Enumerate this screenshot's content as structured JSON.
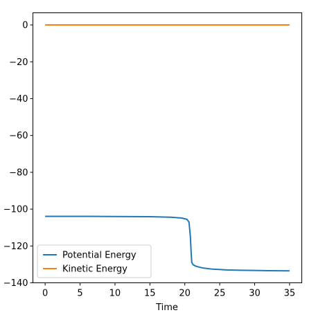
{
  "chart_data": {
    "type": "line",
    "title": "",
    "xlabel": "Time",
    "ylabel": "",
    "xlim": [
      -1.75,
      36.75
    ],
    "ylim": [
      -140,
      6.6
    ],
    "xticks": [
      0,
      5,
      10,
      15,
      20,
      25,
      30,
      35
    ],
    "yticks": [
      0,
      -20,
      -40,
      -60,
      -80,
      -100,
      -120,
      -140
    ],
    "xtick_labels": [
      "0",
      "5",
      "10",
      "15",
      "20",
      "25",
      "30",
      "35"
    ],
    "ytick_labels": [
      "0",
      "−20",
      "−40",
      "−60",
      "−80",
      "−100",
      "−120",
      "−140"
    ],
    "grid": false,
    "legend_position": "lower-left",
    "series": [
      {
        "name": "Potential Energy",
        "color": "#1f77b4",
        "x": [
          0,
          5,
          10,
          15,
          18,
          19.5,
          20.3,
          20.6,
          20.8,
          20.9,
          21.0,
          21.2,
          21.6,
          22.5,
          24,
          26,
          28,
          30,
          32,
          35
        ],
        "y": [
          -103.9,
          -103.9,
          -104.0,
          -104.1,
          -104.4,
          -104.8,
          -105.5,
          -107.0,
          -115,
          -123,
          -129.0,
          -130.2,
          -131.0,
          -131.9,
          -132.6,
          -133.0,
          -133.2,
          -133.3,
          -133.4,
          -133.5
        ]
      },
      {
        "name": "Kinetic Energy",
        "color": "#ff7f0e",
        "x": [
          0,
          35
        ],
        "y": [
          0,
          0
        ]
      }
    ]
  }
}
